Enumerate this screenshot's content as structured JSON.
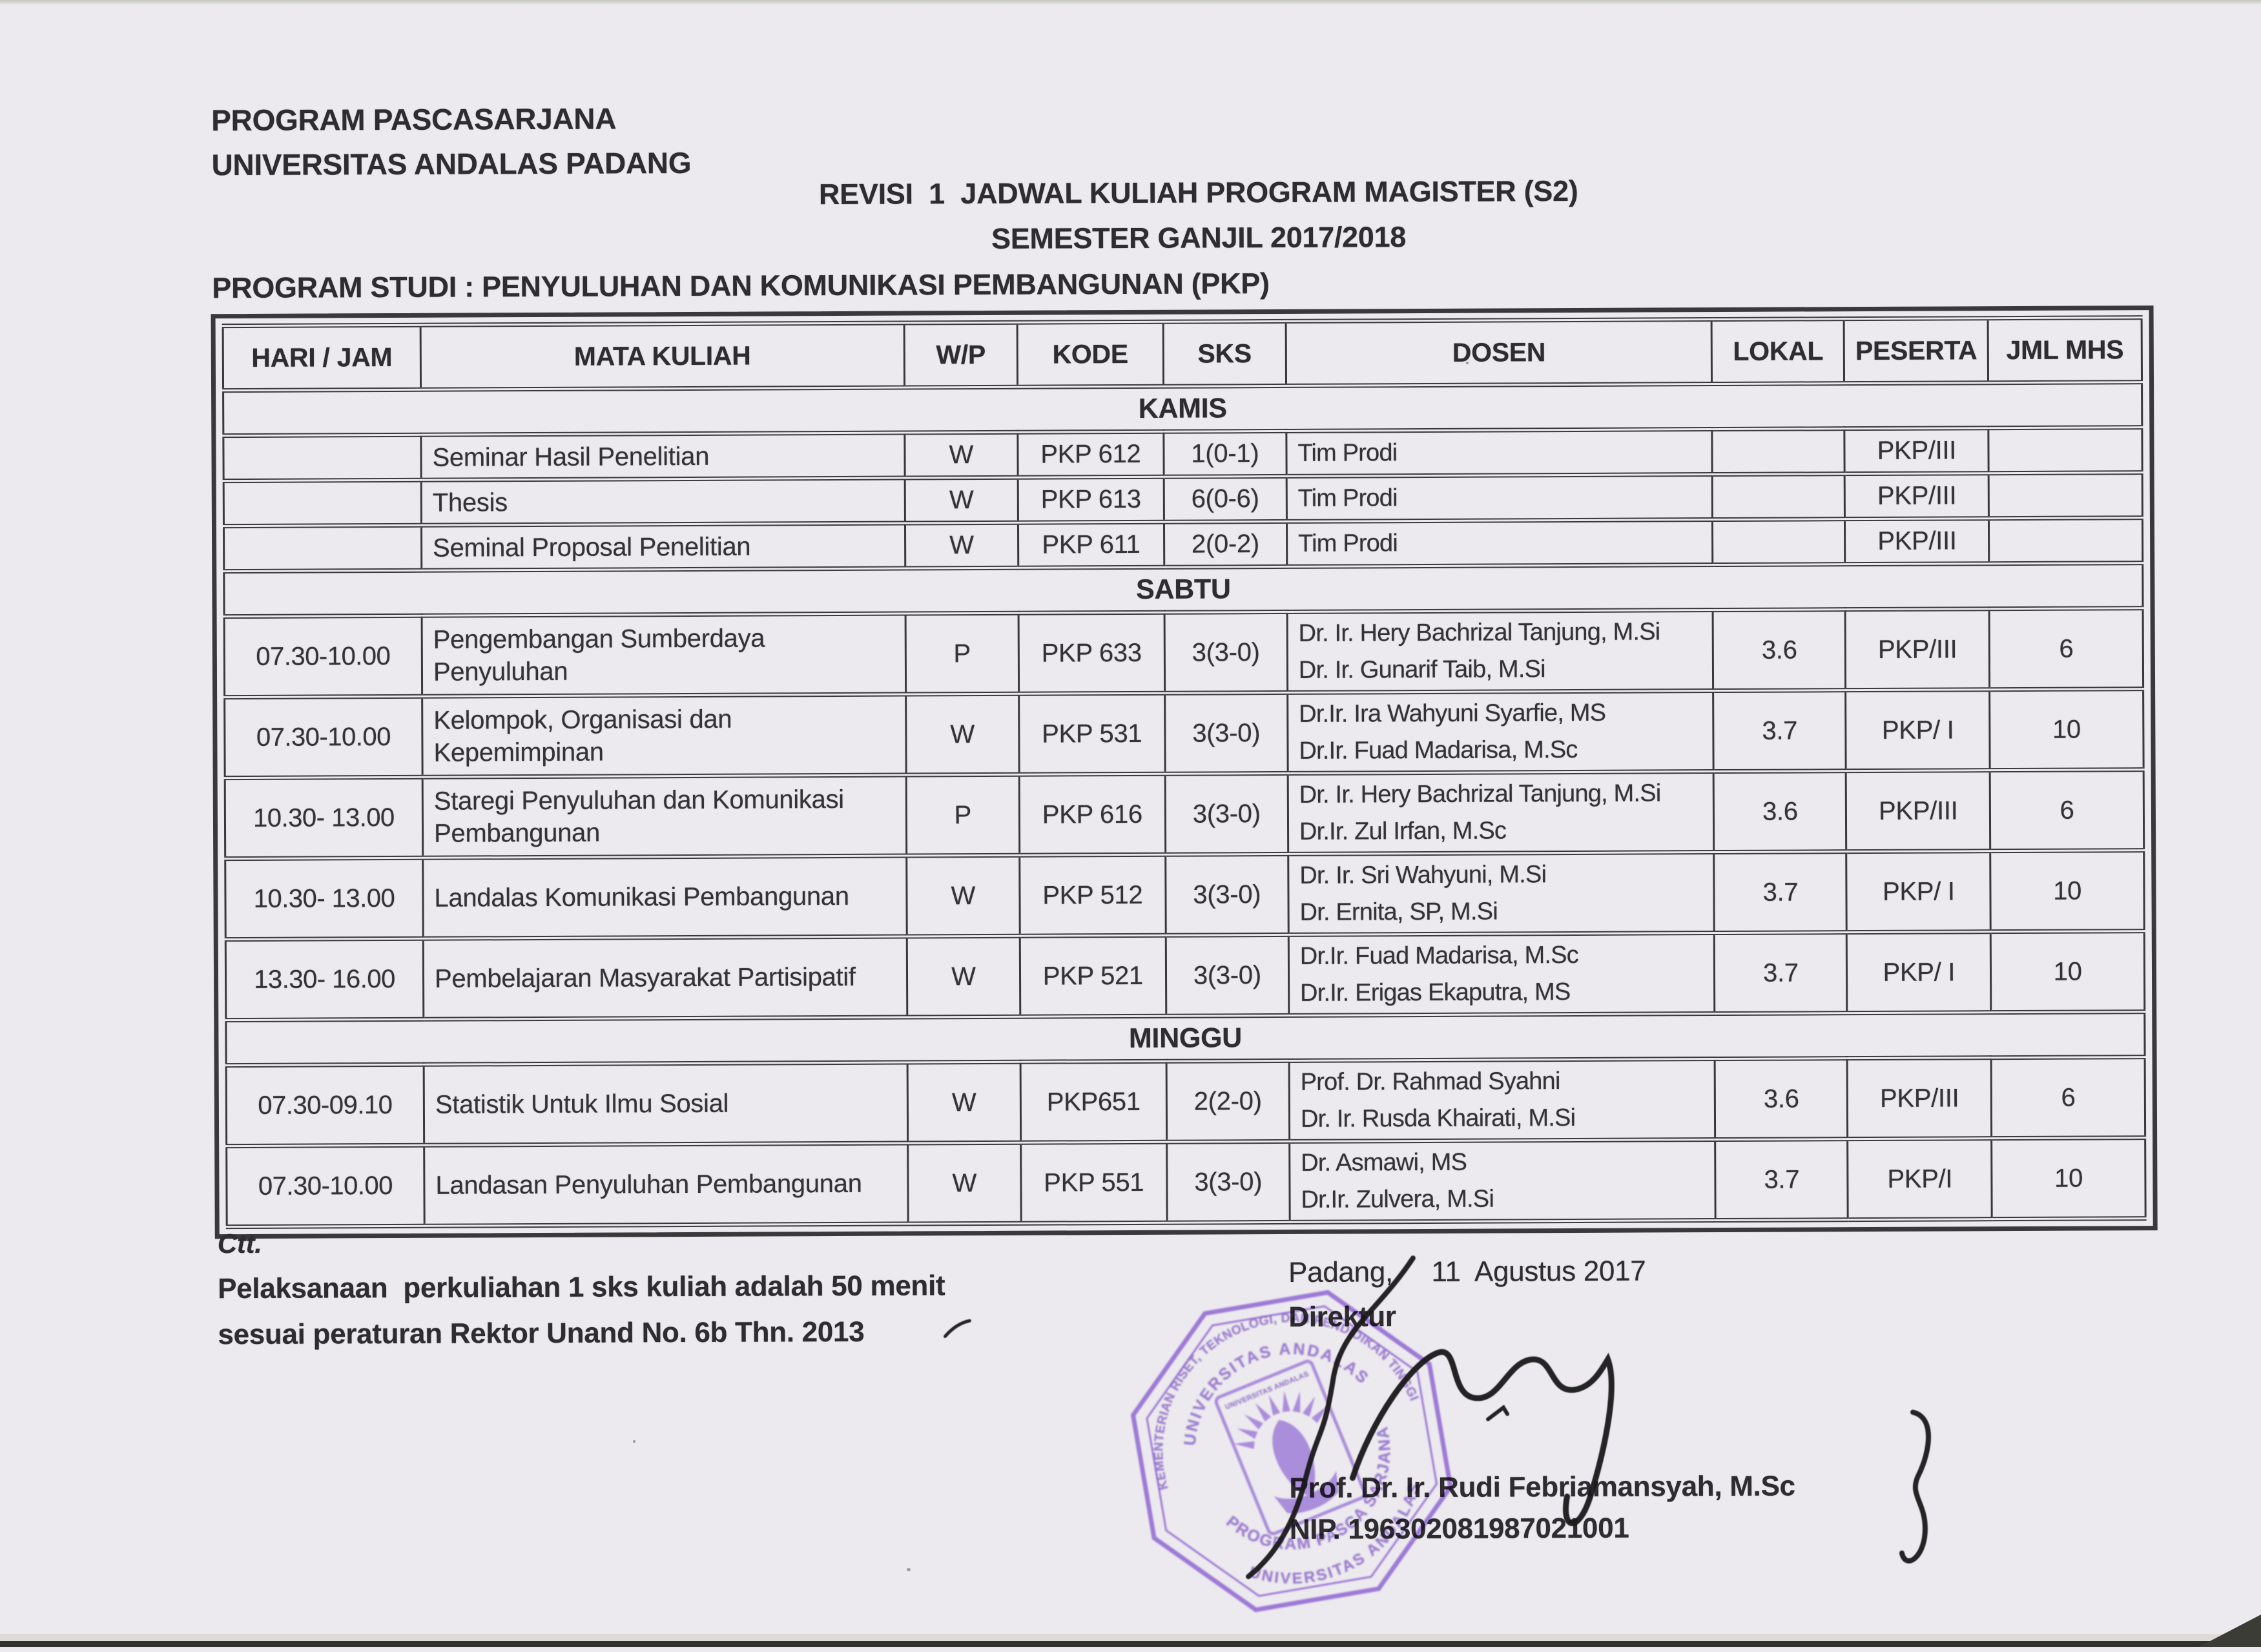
{
  "header": {
    "org_line1": "PROGRAM PASCASARJANA",
    "org_line2": "UNIVERSITAS ANDALAS PADANG",
    "title_line1": "REVISI  1  JADWAL KULIAH PROGRAM MAGISTER (S2)",
    "title_line2": "SEMESTER GANJIL 2017/2018",
    "program_studi": "PROGRAM STUDI : PENYULUHAN DAN KOMUNIKASI PEMBANGUNAN (PKP)"
  },
  "table": {
    "headers": [
      "HARI / JAM",
      "MATA KULIAH",
      "W/P",
      "KODE",
      "SKS",
      "DOSEN",
      "LOKAL",
      "PESERTA",
      "JML MHS"
    ],
    "sections": [
      {
        "day": "KAMIS",
        "rows": [
          {
            "jam": "",
            "mk": "Seminar Hasil Penelitian",
            "wp": "W",
            "kode": "PKP 612",
            "sks": "1(0-1)",
            "dosen": [
              "Tim Prodi"
            ],
            "lokal": "",
            "peserta": "PKP/III",
            "jml": ""
          },
          {
            "jam": "",
            "mk": "Thesis",
            "wp": "W",
            "kode": "PKP 613",
            "sks": "6(0-6)",
            "dosen": [
              "Tim Prodi"
            ],
            "lokal": "",
            "peserta": "PKP/III",
            "jml": ""
          },
          {
            "jam": "",
            "mk": "Seminal Proposal Penelitian",
            "wp": "W",
            "kode": "PKP 611",
            "sks": "2(0-2)",
            "dosen": [
              "Tim Prodi"
            ],
            "lokal": "",
            "peserta": "PKP/III",
            "jml": ""
          }
        ]
      },
      {
        "day": "SABTU",
        "rows": [
          {
            "jam": "07.30-10.00",
            "mk": "Pengembangan Sumberdaya Penyuluhan",
            "wp": "P",
            "kode": "PKP 633",
            "sks": "3(3-0)",
            "dosen": [
              "Dr. Ir. Hery Bachrizal Tanjung, M.Si",
              "Dr. Ir. Gunarif  Taib, M.Si"
            ],
            "lokal": "3.6",
            "peserta": "PKP/III",
            "jml": "6"
          },
          {
            "jam": "07.30-10.00",
            "mk": "Kelompok, Organisasi dan Kepemimpinan",
            "wp": "W",
            "kode": "PKP 531",
            "sks": "3(3-0)",
            "dosen": [
              "Dr.Ir. Ira Wahyuni Syarfie, MS",
              "Dr.Ir. Fuad Madarisa, M.Sc"
            ],
            "lokal": "3.7",
            "peserta": "PKP/ I",
            "jml": "10"
          },
          {
            "jam": "10.30- 13.00",
            "mk": "Staregi Penyuluhan dan Komunikasi Pembangunan",
            "wp": "P",
            "kode": "PKP 616",
            "sks": "3(3-0)",
            "dosen": [
              "Dr. Ir. Hery Bachrizal Tanjung, M.Si",
              "Dr.Ir. Zul Irfan, M.Sc"
            ],
            "lokal": "3.6",
            "peserta": "PKP/III",
            "jml": "6"
          },
          {
            "jam": "10.30- 13.00",
            "mk": "Landalas Komunikasi Pembangunan",
            "wp": "W",
            "kode": "PKP 512",
            "sks": "3(3-0)",
            "dosen": [
              "Dr. Ir. Sri Wahyuni, M.Si",
              "Dr. Ernita, SP, M.Si"
            ],
            "lokal": "3.7",
            "peserta": "PKP/ I",
            "jml": "10"
          },
          {
            "jam": "13.30- 16.00",
            "mk": "Pembelajaran Masyarakat Partisipatif",
            "wp": "W",
            "kode": "PKP 521",
            "sks": "3(3-0)",
            "dosen": [
              "Dr.Ir. Fuad Madarisa, M.Sc",
              "Dr.Ir. Erigas Ekaputra, MS"
            ],
            "lokal": "3.7",
            "peserta": "PKP/ I",
            "jml": "10"
          }
        ]
      },
      {
        "day": "MINGGU",
        "rows": [
          {
            "jam": "07.30-09.10",
            "mk": "Statistik Untuk Ilmu Sosial",
            "wp": "W",
            "kode": "PKP651",
            "sks": "2(2-0)",
            "dosen": [
              "Prof. Dr. Rahmad Syahni",
              "Dr. Ir. Rusda Khairati, M.Si"
            ],
            "lokal": "3.6",
            "peserta": "PKP/III",
            "jml": "6"
          },
          {
            "jam": "07.30-10.00",
            "mk": "Landasan Penyuluhan Pembangunan",
            "wp": "W",
            "kode": "PKP 551",
            "sks": "3(3-0)",
            "dosen": [
              "Dr. Asmawi, MS",
              "Dr.Ir. Zulvera, M.Si"
            ],
            "lokal": "3.7",
            "peserta": "PKP/I",
            "jml": "10"
          }
        ]
      }
    ]
  },
  "footer": {
    "note_label": "Ctt.",
    "note_line1": "Pelaksanaan  perkuliahan 1 sks kuliah adalah 50 menit",
    "note_line2": "sesuai peraturan Rektor Unand No. 6b Thn. 2013",
    "place_date": "Padang,     11  Agustus 2017",
    "role": "Direktur",
    "signer_name": "Prof. Dr. Ir. Rudi Febriamansyah, M.Sc",
    "signer_nip": "NIP. 196302081987021001"
  },
  "stamp": {
    "text_outer": "KEMENTERIAN RISET, TEKNOLOGI, DAN PENDIDIKAN TINGGI",
    "text_inner_top": "UNIVERSITAS ANDALAS",
    "text_bottom_inner": "PROGRAM PASCA SARJANA",
    "text_bottom_outer": "UNIVERSITAS ANDALAS",
    "emblem_text": "UNIVERSITAS ANDALAS",
    "color": "#8d63d2"
  },
  "colors": {
    "paper": "#eceaee",
    "ink": "#2e2c31",
    "table_line": "#3b383c",
    "stamp_purple": "#8d63d2",
    "signature_ink": "#191819"
  }
}
